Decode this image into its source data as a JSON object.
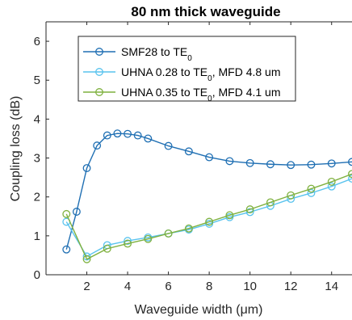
{
  "chart_data": {
    "type": "line",
    "title": "80 nm thick waveguide",
    "xlabel": "Waveguide width (μm)",
    "ylabel": "Coupling loss (dB)",
    "xlim": [
      0,
      15
    ],
    "ylim": [
      0,
      6.5
    ],
    "xticks": [
      2,
      4,
      6,
      8,
      10,
      12,
      14
    ],
    "yticks": [
      0,
      1,
      2,
      3,
      4,
      5,
      6
    ],
    "grid": false,
    "legend_position": "top-left",
    "series": [
      {
        "name_prefix": "SMF28 to TE",
        "name_subscript": "0",
        "name_suffix": "",
        "color": "#1f6fb3",
        "marker": "circle-open",
        "x": [
          1,
          1.5,
          2,
          2.5,
          3,
          3.5,
          4,
          4.5,
          5,
          6,
          7,
          8,
          9,
          10,
          11,
          12,
          13,
          14,
          15
        ],
        "y": [
          0.65,
          1.62,
          2.74,
          3.32,
          3.58,
          3.63,
          3.62,
          3.58,
          3.5,
          3.31,
          3.17,
          3.02,
          2.92,
          2.87,
          2.84,
          2.82,
          2.83,
          2.86,
          2.9
        ]
      },
      {
        "name_prefix": "UHNA 0.28 to TE",
        "name_subscript": "0",
        "name_suffix": ", MFD 4.8 um",
        "color": "#59c3ee",
        "marker": "circle-open",
        "x": [
          1,
          2,
          3,
          4,
          5,
          6,
          7,
          8,
          9,
          10,
          11,
          12,
          13,
          14,
          15
        ],
        "y": [
          1.36,
          0.47,
          0.76,
          0.87,
          0.96,
          1.06,
          1.16,
          1.31,
          1.48,
          1.61,
          1.77,
          1.95,
          2.1,
          2.27,
          2.47
        ]
      },
      {
        "name_prefix": "UHNA 0.35 to TE",
        "name_subscript": "0",
        "name_suffix": ", MFD 4.1 um",
        "color": "#7fb13f",
        "marker": "circle-open",
        "x": [
          1,
          2,
          3,
          4,
          5,
          6,
          7,
          8,
          9,
          10,
          11,
          12,
          13,
          14,
          15
        ],
        "y": [
          1.56,
          0.4,
          0.67,
          0.8,
          0.92,
          1.06,
          1.19,
          1.36,
          1.53,
          1.68,
          1.86,
          2.04,
          2.21,
          2.39,
          2.59
        ]
      }
    ]
  }
}
